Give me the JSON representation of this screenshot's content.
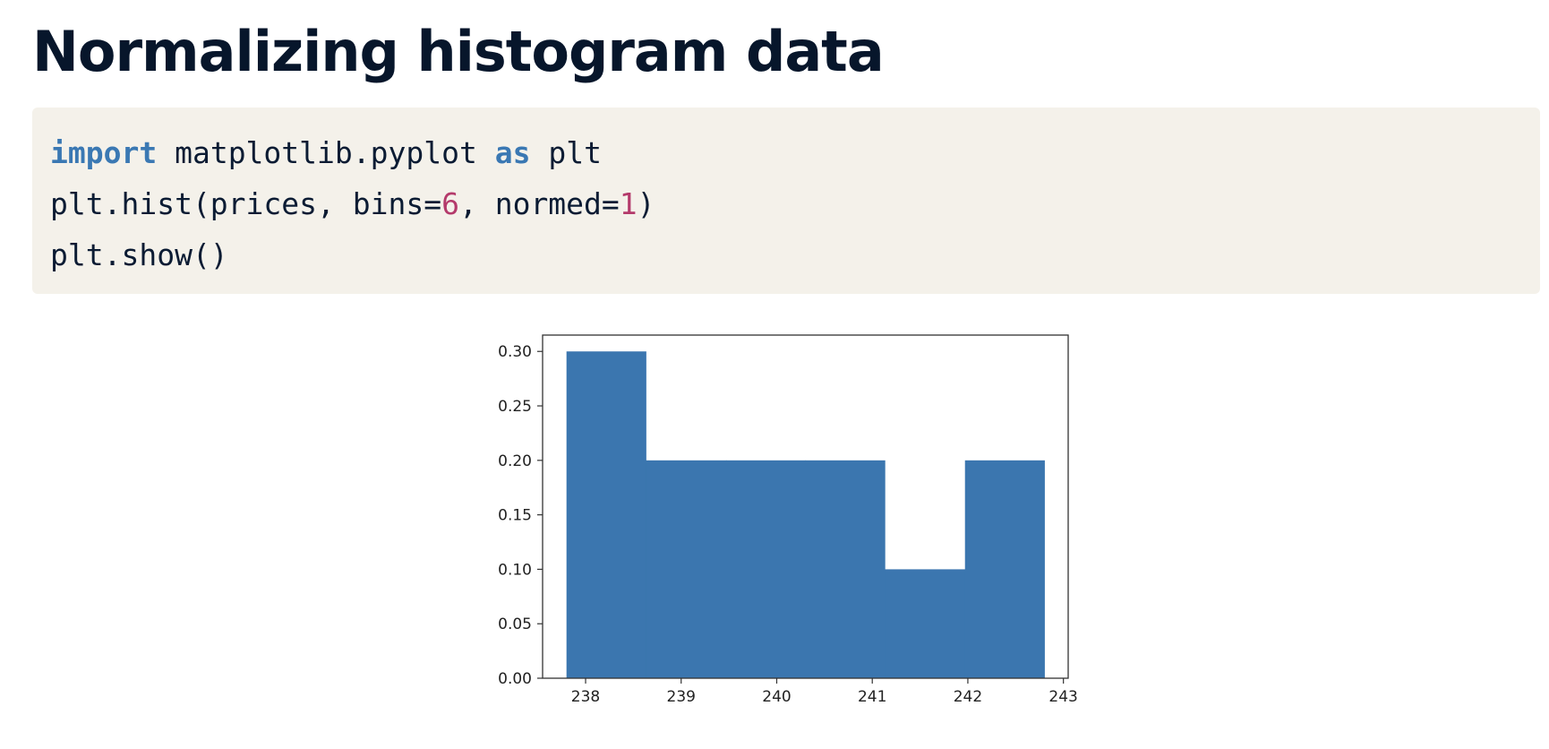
{
  "page": {
    "title": "Normalizing histogram data"
  },
  "code": {
    "line1": {
      "kw1": "import",
      "t1": " matplotlib.pyplot ",
      "kw2": "as",
      "t2": " plt"
    },
    "line2": {
      "t1": "plt.hist(prices, bins=",
      "n1": "6",
      "t2": ", normed=",
      "n2": "1",
      "t3": ")"
    },
    "line3": {
      "t1": "plt.show()"
    }
  },
  "colors": {
    "keyword": "#3a78b3",
    "number": "#b43a6b",
    "bar": "#3b76af",
    "code_background": "#f4f1ea"
  },
  "chart_data": {
    "type": "bar",
    "title": "",
    "xlabel": "",
    "ylabel": "",
    "bins": [
      {
        "x_start": 237.8,
        "x_end": 238.63,
        "value": 0.3
      },
      {
        "x_start": 238.63,
        "x_end": 239.47,
        "value": 0.2
      },
      {
        "x_start": 239.47,
        "x_end": 240.3,
        "value": 0.2
      },
      {
        "x_start": 240.3,
        "x_end": 241.13,
        "value": 0.2
      },
      {
        "x_start": 241.13,
        "x_end": 241.97,
        "value": 0.1
      },
      {
        "x_start": 241.97,
        "x_end": 242.8,
        "value": 0.2
      }
    ],
    "xlim": [
      237.55,
      243.05
    ],
    "ylim": [
      0,
      0.315
    ],
    "xticks": [
      "238",
      "239",
      "240",
      "241",
      "242",
      "243"
    ],
    "xtick_values": [
      238,
      239,
      240,
      241,
      242,
      243
    ],
    "yticks": [
      "0.00",
      "0.05",
      "0.10",
      "0.15",
      "0.20",
      "0.25",
      "0.30"
    ],
    "ytick_values": [
      0,
      0.05,
      0.1,
      0.15,
      0.2,
      0.25,
      0.3
    ],
    "grid": false,
    "legend": "none"
  }
}
